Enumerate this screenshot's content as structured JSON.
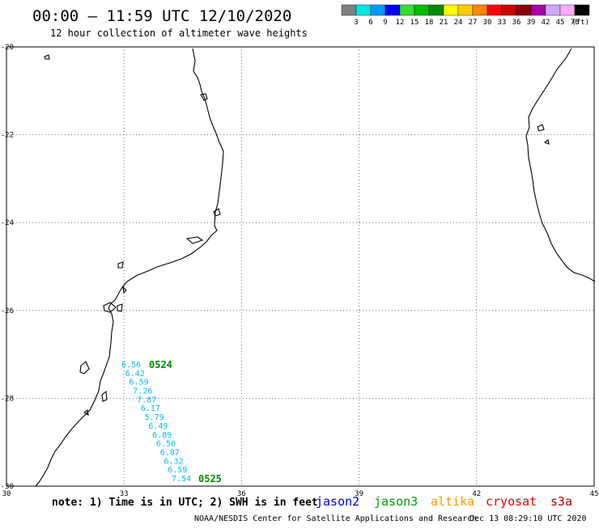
{
  "header": {
    "title": "00:00 – 11:59 UTC 12/10/2020",
    "subtitle": "12 hour collection of altimeter wave heights"
  },
  "legend": {
    "unit": "(ft)",
    "bins": [
      {
        "label": "3",
        "color": "#808080"
      },
      {
        "label": "6",
        "color": "#00e5e5"
      },
      {
        "label": "9",
        "color": "#0099ff"
      },
      {
        "label": "12",
        "color": "#0000ee"
      },
      {
        "label": "15",
        "color": "#33dd33"
      },
      {
        "label": "18",
        "color": "#00bb00"
      },
      {
        "label": "21",
        "color": "#008800"
      },
      {
        "label": "24",
        "color": "#ffff00"
      },
      {
        "label": "27",
        "color": "#ffcc00"
      },
      {
        "label": "30",
        "color": "#ff8800"
      },
      {
        "label": "33",
        "color": "#ff0000"
      },
      {
        "label": "36",
        "color": "#cc0000"
      },
      {
        "label": "39",
        "color": "#880000"
      },
      {
        "label": "42",
        "color": "#aa00aa"
      },
      {
        "label": "45",
        "color": "#ccaaff"
      },
      {
        "label": "70",
        "color": "#ffaaff"
      },
      {
        "label": "",
        "color": "#000000"
      }
    ]
  },
  "map": {
    "lon_range": [
      30,
      45
    ],
    "lat_range": [
      -30,
      -20
    ],
    "lon_labels": [
      "30",
      "33",
      "36",
      "39",
      "42",
      "45"
    ],
    "lat_labels": [
      "-20",
      "-22",
      "-24",
      "-26",
      "-28",
      "-30"
    ],
    "grid": true,
    "grid_style": "dotted"
  },
  "track": {
    "satellite": "jason3",
    "color": "#00bbee",
    "time_label_color": "#008800",
    "time_start": "0524",
    "time_end": "0525",
    "values": [
      "6.56",
      "6.42",
      "6.59",
      "7.26",
      "7.87",
      "6.17",
      "5.79",
      "6.49",
      "6.89",
      "6.50",
      "6.87",
      "6.32",
      "6.59",
      "7.54"
    ]
  },
  "footer": {
    "note": "note: 1) Time is in UTC; 2) SWH is in feet",
    "satellites": [
      {
        "name": "jason2",
        "color": "#0000cc"
      },
      {
        "name": "jason3",
        "color": "#009900"
      },
      {
        "name": "altika",
        "color": "#ff9900"
      },
      {
        "name": "cryosat",
        "color": "#ee0000"
      },
      {
        "name": "s3a",
        "color": "#aa0000"
      }
    ],
    "credit": "NOAA/NESDIS Center for Satellite Applications and Research",
    "timestamp": "Dec 13 08:29:10 UTC 2020"
  }
}
